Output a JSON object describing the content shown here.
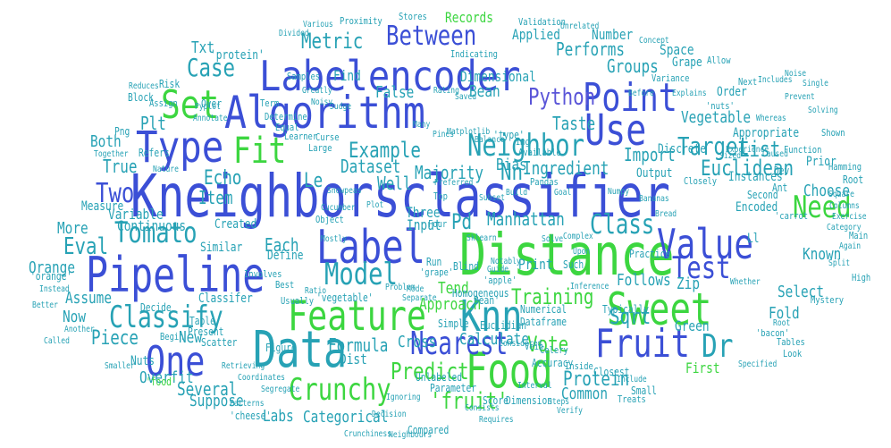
{
  "palette": [
    "#3b4fd6",
    "#27a2b5",
    "#3cd640",
    "#5a55d8",
    "#2f7fc0"
  ],
  "words": [
    {
      "text": "Kneighborsclassifier",
      "color": "#3b4fd6"
    },
    {
      "text": "Labelencoder",
      "color": "#3b4fd6"
    },
    {
      "text": "Algorithm",
      "color": "#3b4fd6"
    },
    {
      "text": "Distance",
      "color": "#3cd640"
    },
    {
      "text": "Pipeline",
      "color": "#3b4fd6"
    },
    {
      "text": "Data",
      "color": "#27a2b5"
    },
    {
      "text": "Feature",
      "color": "#3cd640"
    },
    {
      "text": "Knn",
      "color": "#27a2b5"
    },
    {
      "text": "Label",
      "color": "#3b4fd6"
    },
    {
      "text": "Food",
      "color": "#3cd640"
    },
    {
      "text": "Sweet",
      "color": "#3cd640"
    },
    {
      "text": "Type",
      "color": "#3b4fd6"
    },
    {
      "text": "Set",
      "color": "#3cd640"
    },
    {
      "text": "Point",
      "color": "#3b4fd6"
    },
    {
      "text": "Use",
      "color": "#3b4fd6"
    },
    {
      "text": "Value",
      "color": "#3b4fd6"
    },
    {
      "text": "One",
      "color": "#3b4fd6"
    },
    {
      "text": "Fruit",
      "color": "#3b4fd6"
    },
    {
      "text": "Crunchy",
      "color": "#3cd640"
    },
    {
      "text": "Neighbor",
      "color": "#27a2b5"
    },
    {
      "text": "Model",
      "color": "#27a2b5"
    },
    {
      "text": "Classify",
      "color": "#27a2b5"
    },
    {
      "text": "Tomato",
      "color": "#27a2b5"
    },
    {
      "text": "Fit",
      "color": "#3cd640"
    },
    {
      "text": "Nearest",
      "color": "#3b4fd6"
    },
    {
      "text": "Test",
      "color": "#3b4fd6"
    },
    {
      "text": "Need",
      "color": "#3cd640"
    },
    {
      "text": "Class",
      "color": "#27a2b5"
    },
    {
      "text": "Target",
      "color": "#27a2b5"
    },
    {
      "text": "Between",
      "color": "#3b4fd6"
    },
    {
      "text": "Case",
      "color": "#27a2b5"
    },
    {
      "text": "Metric",
      "color": "#27a2b5"
    },
    {
      "text": "Dr",
      "color": "#27a2b5"
    },
    {
      "text": "Vote",
      "color": "#3cd640"
    },
    {
      "text": "Training",
      "color": "#3cd640"
    },
    {
      "text": "Predict",
      "color": "#3cd640"
    },
    {
      "text": "Two",
      "color": "#3b4fd6"
    },
    {
      "text": "Euclidean",
      "color": "#27a2b5"
    },
    {
      "text": "Example",
      "color": "#27a2b5"
    },
    {
      "text": "Each",
      "color": "#27a2b5"
    },
    {
      "text": "Echo",
      "color": "#27a2b5"
    },
    {
      "text": "Eval",
      "color": "#27a2b5"
    },
    {
      "text": "Sqrt",
      "color": "#27a2b5"
    },
    {
      "text": "Protein",
      "color": "#27a2b5"
    },
    {
      "text": "Several",
      "color": "#27a2b5"
    },
    {
      "text": "Piece",
      "color": "#27a2b5"
    },
    {
      "text": "Formula",
      "color": "#27a2b5"
    },
    {
      "text": "Calculate",
      "color": "#27a2b5"
    },
    {
      "text": "Manhattan",
      "color": "#27a2b5"
    },
    {
      "text": "Groups",
      "color": "#27a2b5"
    },
    {
      "text": "Performs",
      "color": "#27a2b5"
    },
    {
      "text": "List",
      "color": "#27a2b5"
    },
    {
      "text": "Python",
      "color": "#5a55d8"
    },
    {
      "text": "Taste",
      "color": "#27a2b5"
    },
    {
      "text": "Import",
      "color": "#27a2b5"
    },
    {
      "text": "Ingredient",
      "color": "#27a2b5"
    },
    {
      "text": "Dataset",
      "color": "#27a2b5"
    },
    {
      "text": "Majority",
      "color": "#27a2b5"
    },
    {
      "text": "Well",
      "color": "#27a2b5"
    },
    {
      "text": "Le",
      "color": "#27a2b5"
    },
    {
      "text": "Nn",
      "color": "#27a2b5"
    },
    {
      "text": "Pd",
      "color": "#27a2b5"
    },
    {
      "text": "Plt",
      "color": "#27a2b5"
    },
    {
      "text": "Item",
      "color": "#27a2b5"
    },
    {
      "text": "True",
      "color": "#27a2b5"
    },
    {
      "text": "Both",
      "color": "#27a2b5"
    },
    {
      "text": "More",
      "color": "#27a2b5"
    },
    {
      "text": "Orange",
      "color": "#27a2b5"
    },
    {
      "text": "Assume",
      "color": "#27a2b5"
    },
    {
      "text": "Now",
      "color": "#27a2b5"
    },
    {
      "text": "New",
      "color": "#27a2b5"
    },
    {
      "text": "Vegetable",
      "color": "#27a2b5"
    },
    {
      "text": "Choose",
      "color": "#27a2b5"
    },
    {
      "text": "Known",
      "color": "#27a2b5"
    },
    {
      "text": "Select",
      "color": "#27a2b5"
    },
    {
      "text": "Fold",
      "color": "#27a2b5"
    },
    {
      "text": "Follows",
      "color": "#27a2b5"
    },
    {
      "text": "Tend",
      "color": "#3cd640"
    },
    {
      "text": "Approach",
      "color": "#3cd640"
    },
    {
      "text": "Bias",
      "color": "#27a2b5"
    },
    {
      "text": "Cross",
      "color": "#27a2b5"
    },
    {
      "text": "Common",
      "color": "#27a2b5"
    },
    {
      "text": "Labs",
      "color": "#27a2b5"
    },
    {
      "text": "Categorical",
      "color": "#27a2b5"
    },
    {
      "text": "'fruit'",
      "color": "#3cd640"
    },
    {
      "text": "Suppose",
      "color": "#27a2b5"
    },
    {
      "text": "Overfit",
      "color": "#27a2b5"
    },
    {
      "text": "Nuts",
      "color": "#27a2b5"
    },
    {
      "text": "Txt",
      "color": "#27a2b5"
    },
    {
      "text": "False",
      "color": "#27a2b5"
    },
    {
      "text": "Bean",
      "color": "#27a2b5"
    },
    {
      "text": "Dimensional",
      "color": "#27a2b5"
    },
    {
      "text": "Find",
      "color": "#27a2b5"
    },
    {
      "text": "Applied",
      "color": "#27a2b5"
    },
    {
      "text": "Number",
      "color": "#27a2b5"
    },
    {
      "text": "Space",
      "color": "#27a2b5"
    },
    {
      "text": "Records",
      "color": "#3cd640"
    },
    {
      "text": "Zip",
      "color": "#27a2b5"
    },
    {
      "text": "Print",
      "color": "#27a2b5"
    },
    {
      "text": "Green",
      "color": "#27a2b5"
    },
    {
      "text": "First",
      "color": "#3cd640"
    },
    {
      "text": "Ll",
      "color": "#27a2b5"
    },
    {
      "text": "Continuous",
      "color": "#27a2b5"
    },
    {
      "text": "Variable",
      "color": "#27a2b5"
    },
    {
      "text": "Input",
      "color": "#27a2b5"
    },
    {
      "text": "Three",
      "color": "#27a2b5"
    },
    {
      "text": "Created",
      "color": "#27a2b5"
    },
    {
      "text": "Define",
      "color": "#27a2b5"
    },
    {
      "text": "Similar",
      "color": "#27a2b5"
    },
    {
      "text": "Classifer",
      "color": "#27a2b5"
    },
    {
      "text": "Measure",
      "color": "#27a2b5"
    },
    {
      "text": "Dist",
      "color": "#27a2b5"
    },
    {
      "text": "Encoded",
      "color": "#27a2b5"
    },
    {
      "text": "Prior",
      "color": "#27a2b5"
    },
    {
      "text": "Instances",
      "color": "#27a2b5"
    },
    {
      "text": "Output",
      "color": "#27a2b5"
    },
    {
      "text": "Discrete",
      "color": "#27a2b5"
    },
    {
      "text": "Appropriate",
      "color": "#27a2b5"
    },
    {
      "text": "Order",
      "color": "#27a2b5"
    },
    {
      "text": "Grape",
      "color": "#27a2b5"
    },
    {
      "text": "'protein'",
      "color": "#27a2b5"
    },
    {
      "text": "Risk",
      "color": "#27a2b5"
    },
    {
      "text": "Over",
      "color": "#27a2b5"
    },
    {
      "text": "Block",
      "color": "#27a2b5"
    },
    {
      "text": "Png",
      "color": "#27a2b5"
    },
    {
      "text": "Refers",
      "color": "#27a2b5"
    },
    {
      "text": "Figure",
      "color": "#27a2b5"
    },
    {
      "text": "Present",
      "color": "#27a2b5"
    },
    {
      "text": "Decide",
      "color": "#27a2b5"
    },
    {
      "text": "Table",
      "color": "#27a2b5"
    },
    {
      "text": "Scatter",
      "color": "#27a2b5"
    },
    {
      "text": "'food'",
      "color": "#3cd640"
    },
    {
      "text": "'cheese'",
      "color": "#27a2b5"
    },
    {
      "text": "'orange'",
      "color": "#27a2b5"
    },
    {
      "text": "'vegetable'",
      "color": "#27a2b5"
    },
    {
      "text": "Homogeneous",
      "color": "#27a2b5"
    },
    {
      "text": "Unlabeled",
      "color": "#27a2b5"
    },
    {
      "text": "Parameter",
      "color": "#27a2b5"
    },
    {
      "text": "Score",
      "color": "#27a2b5"
    },
    {
      "text": "Dimension",
      "color": "#27a2b5"
    },
    {
      "text": "Compared",
      "color": "#27a2b5"
    },
    {
      "text": "Dataframe",
      "color": "#27a2b5"
    },
    {
      "text": "Numerical",
      "color": "#27a2b5"
    },
    {
      "text": "Typically",
      "color": "#27a2b5"
    },
    {
      "text": "Closest",
      "color": "#27a2b5"
    },
    {
      "text": "Small",
      "color": "#27a2b5"
    },
    {
      "text": "Euclidian",
      "color": "#27a2b5"
    },
    {
      "text": "Blind",
      "color": "#27a2b5"
    },
    {
      "text": "Simple",
      "color": "#27a2b5"
    },
    {
      "text": "Accuracy",
      "color": "#27a2b5"
    },
    {
      "text": "Practice",
      "color": "#27a2b5"
    },
    {
      "text": "Such",
      "color": "#27a2b5"
    },
    {
      "text": "Run",
      "color": "#27a2b5"
    },
    {
      "text": "Second",
      "color": "#27a2b5"
    },
    {
      "text": "Dev",
      "color": "#27a2b5"
    },
    {
      "text": "Ant",
      "color": "#27a2b5"
    },
    {
      "text": "Root",
      "color": "#27a2b5"
    },
    {
      "text": "Hamming",
      "color": "#27a2b5"
    },
    {
      "text": "Main",
      "color": "#27a2b5"
    },
    {
      "text": "High",
      "color": "#27a2b5"
    },
    {
      "text": "Function",
      "color": "#27a2b5"
    },
    {
      "text": "Shown",
      "color": "#27a2b5"
    },
    {
      "text": "Next",
      "color": "#27a2b5"
    },
    {
      "text": "Allow",
      "color": "#27a2b5"
    },
    {
      "text": "Variance",
      "color": "#27a2b5"
    },
    {
      "text": "Indicating",
      "color": "#27a2b5"
    },
    {
      "text": "Stores",
      "color": "#27a2b5"
    },
    {
      "text": "Proximity",
      "color": "#27a2b5"
    },
    {
      "text": "Validation",
      "color": "#27a2b5"
    },
    {
      "text": "'nuts'",
      "color": "#27a2b5"
    },
    {
      "text": "Samples",
      "color": "#27a2b5"
    },
    {
      "text": "Assign",
      "color": "#27a2b5"
    },
    {
      "text": "Learner",
      "color": "#27a2b5"
    },
    {
      "text": "Curse",
      "color": "#27a2b5"
    },
    {
      "text": "Large",
      "color": "#27a2b5"
    },
    {
      "text": "Determine",
      "color": "#27a2b5"
    },
    {
      "text": "Equal",
      "color": "#27a2b5"
    },
    {
      "text": "Term",
      "color": "#27a2b5"
    },
    {
      "text": "Img",
      "color": "#27a2b5"
    },
    {
      "text": "Available",
      "color": "#27a2b5"
    },
    {
      "text": "Top",
      "color": "#27a2b5"
    },
    {
      "text": "Pandas",
      "color": "#27a2b5"
    },
    {
      "text": "Closely",
      "color": "#27a2b5"
    },
    {
      "text": "Treats",
      "color": "#27a2b5"
    },
    {
      "text": "'bacon'",
      "color": "#27a2b5"
    },
    {
      "text": "'carrot'",
      "color": "#27a2b5"
    },
    {
      "text": "'grape'",
      "color": "#27a2b5"
    },
    {
      "text": "'apple'",
      "color": "#27a2b5"
    },
    {
      "text": "Vein",
      "color": "#27a2b5"
    },
    {
      "text": "Celery",
      "color": "#27a2b5"
    },
    {
      "text": "Inside",
      "color": "#27a2b5"
    },
    {
      "text": "Four",
      "color": "#27a2b5"
    },
    {
      "text": "Object",
      "color": "#27a2b5"
    },
    {
      "text": "Best",
      "color": "#27a2b5"
    },
    {
      "text": "Usually",
      "color": "#27a2b5"
    },
    {
      "text": "Involves",
      "color": "#27a2b5"
    },
    {
      "text": "Begin",
      "color": "#27a2b5"
    },
    {
      "text": "Mystery",
      "color": "#27a2b5"
    },
    {
      "text": "Tables",
      "color": "#27a2b5"
    },
    {
      "text": "Look",
      "color": "#27a2b5"
    },
    {
      "text": "Specified",
      "color": "#27a2b5"
    },
    {
      "text": "Neighbours",
      "color": "#27a2b5"
    },
    {
      "text": "Crunchiness",
      "color": "#27a2b5"
    },
    {
      "text": "Better",
      "color": "#27a2b5"
    },
    {
      "text": "Called",
      "color": "#27a2b5"
    },
    {
      "text": "Smaller",
      "color": "#27a2b5"
    },
    {
      "text": "Nature",
      "color": "#27a2b5"
    },
    {
      "text": "Together",
      "color": "#27a2b5"
    },
    {
      "text": "Reduces",
      "color": "#27a2b5"
    },
    {
      "text": "Annotate",
      "color": "#27a2b5"
    },
    {
      "text": "Various",
      "color": "#27a2b5"
    },
    {
      "text": "Divided",
      "color": "#27a2b5"
    },
    {
      "text": "Concept",
      "color": "#27a2b5"
    },
    {
      "text": "Unrelated",
      "color": "#27a2b5"
    },
    {
      "text": "Before",
      "color": "#27a2b5"
    },
    {
      "text": "Rating",
      "color": "#27a2b5"
    },
    {
      "text": "Saved",
      "color": "#27a2b5"
    },
    {
      "text": "Greatly",
      "color": "#27a2b5"
    },
    {
      "text": "Judge",
      "color": "#27a2b5"
    },
    {
      "text": "Noisy",
      "color": "#27a2b5"
    },
    {
      "text": "Experience",
      "color": "#27a2b5"
    },
    {
      "text": "Caused",
      "color": "#27a2b5"
    },
    {
      "text": "Sized",
      "color": "#27a2b5"
    },
    {
      "text": "Square",
      "color": "#27a2b5"
    },
    {
      "text": "Columns",
      "color": "#27a2b5"
    },
    {
      "text": "Again",
      "color": "#27a2b5"
    },
    {
      "text": "Complex",
      "color": "#27a2b5"
    },
    {
      "text": "Solve",
      "color": "#27a2b5"
    },
    {
      "text": "Upon",
      "color": "#27a2b5"
    },
    {
      "text": "Solving",
      "color": "#27a2b5"
    },
    {
      "text": "Single",
      "color": "#27a2b5"
    },
    {
      "text": "Includes",
      "color": "#27a2b5"
    },
    {
      "text": "Noise",
      "color": "#27a2b5"
    },
    {
      "text": "Whereas",
      "color": "#27a2b5"
    },
    {
      "text": "Prevent",
      "color": "#27a2b5"
    },
    {
      "text": "Steps",
      "color": "#27a2b5"
    },
    {
      "text": "Verify",
      "color": "#27a2b5"
    },
    {
      "text": "Another",
      "color": "#27a2b5"
    },
    {
      "text": "Instead",
      "color": "#27a2b5"
    },
    {
      "text": "Patterns",
      "color": "#27a2b5"
    },
    {
      "text": "Segregate",
      "color": "#27a2b5"
    },
    {
      "text": "Coordinates",
      "color": "#27a2b5"
    },
    {
      "text": "Retrieving",
      "color": "#27a2b5"
    },
    {
      "text": "Ignoring",
      "color": "#27a2b5"
    },
    {
      "text": "Decision",
      "color": "#27a2b5"
    },
    {
      "text": "Requires",
      "color": "#27a2b5"
    },
    {
      "text": "Consists",
      "color": "#27a2b5"
    },
    {
      "text": "Mode",
      "color": "#27a2b5"
    },
    {
      "text": "Preferred",
      "color": "#27a2b5"
    },
    {
      "text": "Problem",
      "color": "#27a2b5"
    },
    {
      "text": "Separate",
      "color": "#27a2b5"
    },
    {
      "text": "Guide",
      "color": "#27a2b5"
    },
    {
      "text": "Ratio",
      "color": "#27a2b5"
    },
    {
      "text": "Mostly",
      "color": "#27a2b5"
    },
    {
      "text": "Explains",
      "color": "#27a2b5"
    },
    {
      "text": "Include",
      "color": "#27a2b5"
    },
    {
      "text": "Considered",
      "color": "#27a2b5"
    },
    {
      "text": "Interval",
      "color": "#27a2b5"
    },
    {
      "text": "Split",
      "color": "#27a2b5"
    },
    {
      "text": "Whether",
      "color": "#27a2b5"
    },
    {
      "text": "Pyplot",
      "color": "#27a2b5"
    },
    {
      "text": "Balance",
      "color": "#27a2b5"
    },
    {
      "text": "Pines",
      "color": "#27a2b5"
    },
    {
      "text": "Matplotlib",
      "color": "#27a2b5"
    },
    {
      "text": "Many",
      "color": "#27a2b5"
    },
    {
      "text": "Subset",
      "color": "#27a2b5"
    },
    {
      "text": "Build",
      "color": "#27a2b5"
    },
    {
      "text": "Goal",
      "color": "#27a2b5"
    },
    {
      "text": "Sklearn",
      "color": "#27a2b5"
    },
    {
      "text": "Notably",
      "color": "#27a2b5"
    },
    {
      "text": "Inference",
      "color": "#27a2b5"
    },
    {
      "text": "Numpy",
      "color": "#27a2b5"
    },
    {
      "text": "Bananas",
      "color": "#27a2b5"
    },
    {
      "text": "Bread",
      "color": "#27a2b5"
    },
    {
      "text": "Snowpeas",
      "color": "#27a2b5"
    },
    {
      "text": "Cucumber",
      "color": "#27a2b5"
    },
    {
      "text": "Plot",
      "color": "#27a2b5"
    },
    {
      "text": "Bean'",
      "color": "#27a2b5"
    },
    {
      "text": "'type'",
      "color": "#27a2b5"
    },
    {
      "text": "Root",
      "color": "#27a2b5"
    },
    {
      "text": "Exercise",
      "color": "#27a2b5"
    },
    {
      "text": "Category",
      "color": "#27a2b5"
    }
  ]
}
